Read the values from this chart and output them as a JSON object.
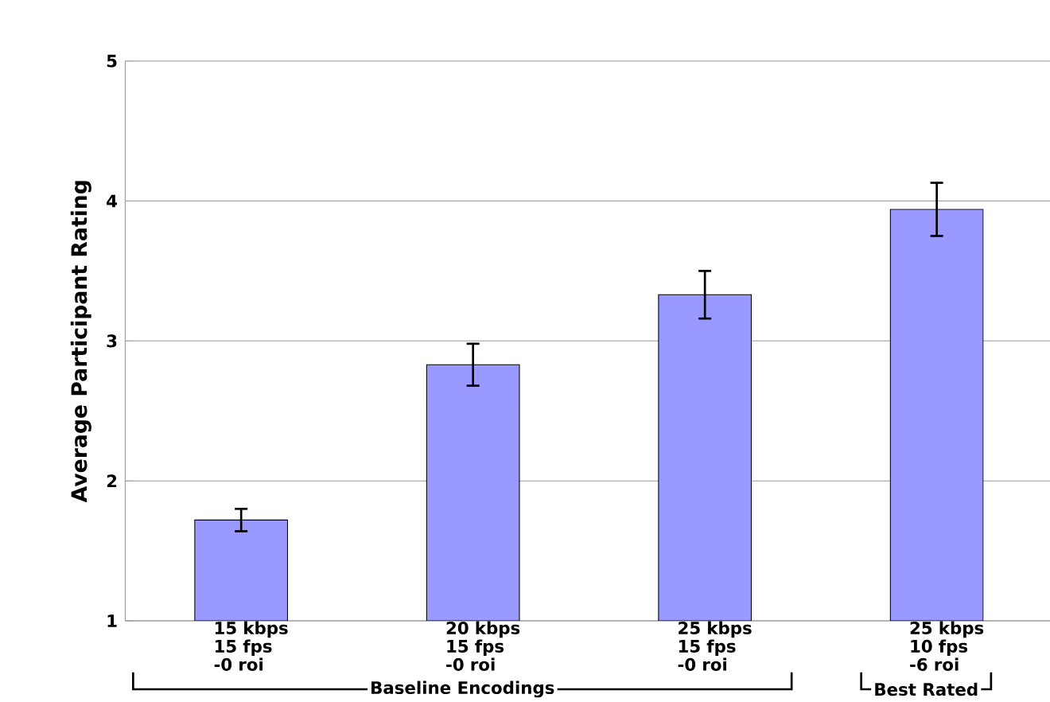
{
  "chart_data": {
    "type": "bar",
    "ylabel": "Average Participant Rating",
    "categories": [
      "15 kbps 15 fps -0 roi",
      "20 kbps 15 fps -0 roi",
      "25 kbps 15 fps -0 roi",
      "25 kbps 10 fps -6 roi"
    ],
    "values": [
      1.72,
      2.83,
      3.33,
      3.94
    ],
    "errors": [
      0.08,
      0.15,
      0.17,
      0.19
    ],
    "color": "#9999ff",
    "ylim": [
      1,
      5
    ],
    "yticks": [
      1,
      2,
      3,
      4,
      5
    ],
    "grid": "y",
    "annotations": [
      "Baseline Encodings",
      "Best Rated"
    ]
  }
}
